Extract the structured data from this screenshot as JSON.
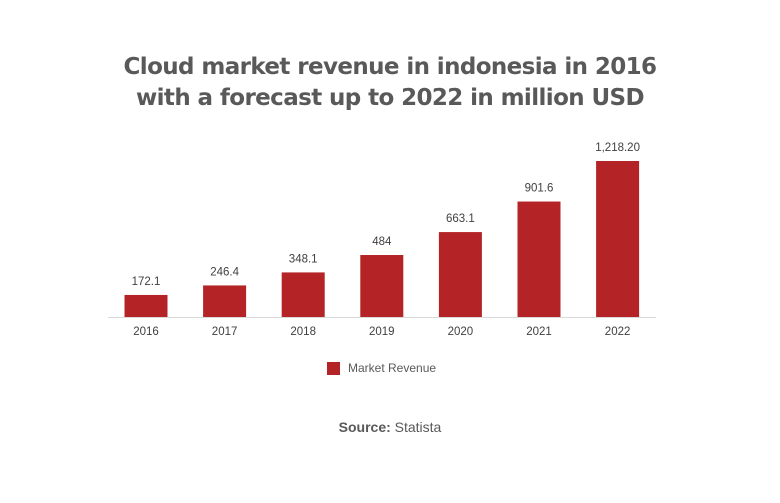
{
  "chart_data": {
    "type": "bar",
    "title_line1": "Cloud market revenue in indonesia in 2016",
    "title_line2": "with a forecast up to 2022 in million USD",
    "categories": [
      "2016",
      "2017",
      "2018",
      "2019",
      "2020",
      "2021",
      "2022"
    ],
    "values": [
      172.1,
      246.4,
      348.1,
      484,
      663.1,
      901.6,
      1218.2
    ],
    "data_labels": [
      "172.1",
      "246.4",
      "348.1",
      "484",
      "663.1",
      "901.6",
      "1,218.20"
    ],
    "series": [
      {
        "name": "Market Revenue",
        "color": "#b42326"
      }
    ],
    "xlabel": "",
    "ylabel": "",
    "grid": false,
    "legend_position": "bottom"
  },
  "source": {
    "label": "Source:",
    "value": "Statista"
  }
}
